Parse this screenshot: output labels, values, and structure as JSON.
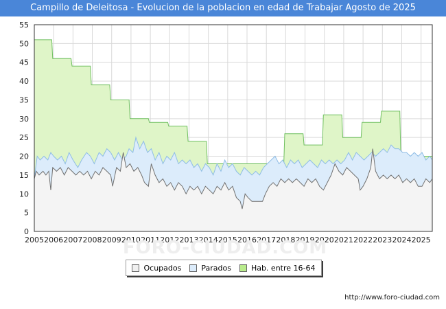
{
  "title": "Campillo de Deleitosa - Evolucion de la poblacion en edad de Trabajar Agosto de 2025",
  "source": "http://www.foro-ciudad.com",
  "watermark": "FORO-CIUDAD.COM",
  "colors": {
    "title_bg": "#4a86d8",
    "hab_fill": "#dff5c8",
    "hab_line": "#6fbf5f",
    "parados_fill": "#dcecfb",
    "parados_line": "#8fbde6",
    "ocupados_fill": "#f4f4f4",
    "ocupados_line": "#707070",
    "grid": "#d9d9d9"
  },
  "legend": [
    {
      "name": "Ocupados",
      "color": "#f0f0f0"
    },
    {
      "name": "Parados",
      "color": "#dcecfb"
    },
    {
      "name": "Hab. entre 16-64",
      "color": "#b9ec8c"
    }
  ],
  "chart_data": {
    "type": "area",
    "xlim": [
      2005,
      2025.58
    ],
    "ylim": [
      0,
      55
    ],
    "y_ticks": [
      0,
      5,
      10,
      15,
      20,
      25,
      30,
      35,
      40,
      45,
      50,
      55
    ],
    "x_ticks": [
      "2005",
      "2006",
      "2007",
      "2008",
      "2009",
      "2010",
      "2011",
      "2012",
      "2013",
      "2014",
      "2015",
      "2016",
      "2017",
      "2018",
      "2019",
      "2020",
      "2021",
      "2022",
      "2023",
      "2024",
      "2025"
    ],
    "grid": true,
    "legend_position": "bottom",
    "series": [
      {
        "name": "Hab. entre 16-64",
        "points": [
          [
            2005.0,
            51
          ],
          [
            2005.9,
            51
          ],
          [
            2005.95,
            46
          ],
          [
            2006.9,
            46
          ],
          [
            2006.95,
            44
          ],
          [
            2007.9,
            44
          ],
          [
            2007.95,
            39
          ],
          [
            2008.9,
            39
          ],
          [
            2008.95,
            35
          ],
          [
            2009.9,
            35
          ],
          [
            2009.95,
            30
          ],
          [
            2010.9,
            30
          ],
          [
            2010.95,
            29
          ],
          [
            2011.9,
            29
          ],
          [
            2011.95,
            28
          ],
          [
            2012.9,
            28
          ],
          [
            2012.95,
            24
          ],
          [
            2013.9,
            24
          ],
          [
            2013.95,
            18
          ],
          [
            2017.9,
            18
          ],
          [
            2017.95,
            26
          ],
          [
            2018.9,
            26
          ],
          [
            2018.95,
            23
          ],
          [
            2019.9,
            23
          ],
          [
            2019.95,
            31
          ],
          [
            2020.9,
            31
          ],
          [
            2020.95,
            25
          ],
          [
            2021.9,
            25
          ],
          [
            2021.95,
            29
          ],
          [
            2022.9,
            29
          ],
          [
            2022.95,
            32
          ],
          [
            2023.9,
            32
          ],
          [
            2023.95,
            20
          ],
          [
            2025.58,
            20
          ]
        ]
      },
      {
        "name": "Parados",
        "points": [
          [
            2005.0,
            14
          ],
          [
            2005.15,
            20
          ],
          [
            2005.3,
            19
          ],
          [
            2005.5,
            20
          ],
          [
            2005.7,
            19
          ],
          [
            2005.85,
            21
          ],
          [
            2006.0,
            20
          ],
          [
            2006.2,
            19
          ],
          [
            2006.4,
            20
          ],
          [
            2006.6,
            18
          ],
          [
            2006.8,
            21
          ],
          [
            2007.0,
            19
          ],
          [
            2007.25,
            17
          ],
          [
            2007.45,
            19
          ],
          [
            2007.7,
            21
          ],
          [
            2007.9,
            20
          ],
          [
            2008.1,
            18
          ],
          [
            2008.35,
            21
          ],
          [
            2008.55,
            20
          ],
          [
            2008.75,
            22
          ],
          [
            2008.95,
            21
          ],
          [
            2009.15,
            19
          ],
          [
            2009.35,
            21
          ],
          [
            2009.55,
            19
          ],
          [
            2009.75,
            20
          ],
          [
            2009.9,
            22
          ],
          [
            2010.1,
            21
          ],
          [
            2010.25,
            25
          ],
          [
            2010.45,
            22
          ],
          [
            2010.65,
            24
          ],
          [
            2010.85,
            21
          ],
          [
            2011.05,
            22
          ],
          [
            2011.25,
            19
          ],
          [
            2011.45,
            21
          ],
          [
            2011.65,
            18
          ],
          [
            2011.85,
            20
          ],
          [
            2012.05,
            19
          ],
          [
            2012.25,
            21
          ],
          [
            2012.45,
            18
          ],
          [
            2012.65,
            19
          ],
          [
            2012.85,
            18
          ],
          [
            2013.05,
            19
          ],
          [
            2013.25,
            17
          ],
          [
            2013.45,
            18
          ],
          [
            2013.65,
            16
          ],
          [
            2013.85,
            18
          ],
          [
            2014.05,
            17
          ],
          [
            2014.25,
            15
          ],
          [
            2014.45,
            18
          ],
          [
            2014.65,
            16
          ],
          [
            2014.85,
            19
          ],
          [
            2015.05,
            17
          ],
          [
            2015.25,
            18
          ],
          [
            2015.45,
            16
          ],
          [
            2015.65,
            15
          ],
          [
            2015.85,
            17
          ],
          [
            2016.05,
            16
          ],
          [
            2016.25,
            15
          ],
          [
            2016.45,
            16
          ],
          [
            2016.65,
            15
          ],
          [
            2016.85,
            17
          ],
          [
            2017.05,
            18
          ],
          [
            2017.25,
            19
          ],
          [
            2017.45,
            20
          ],
          [
            2017.65,
            18
          ],
          [
            2017.85,
            19
          ],
          [
            2018.05,
            17
          ],
          [
            2018.25,
            19
          ],
          [
            2018.45,
            18
          ],
          [
            2018.65,
            19
          ],
          [
            2018.85,
            17
          ],
          [
            2019.05,
            18
          ],
          [
            2019.25,
            19
          ],
          [
            2019.45,
            18
          ],
          [
            2019.65,
            17
          ],
          [
            2019.85,
            19
          ],
          [
            2020.05,
            18
          ],
          [
            2020.25,
            19
          ],
          [
            2020.45,
            18
          ],
          [
            2020.65,
            19
          ],
          [
            2020.85,
            18
          ],
          [
            2021.05,
            19
          ],
          [
            2021.25,
            21
          ],
          [
            2021.45,
            19
          ],
          [
            2021.65,
            21
          ],
          [
            2021.85,
            20
          ],
          [
            2022.05,
            19
          ],
          [
            2022.25,
            20
          ],
          [
            2022.45,
            21
          ],
          [
            2022.65,
            20
          ],
          [
            2022.85,
            21
          ],
          [
            2023.05,
            22
          ],
          [
            2023.25,
            21
          ],
          [
            2023.45,
            23
          ],
          [
            2023.65,
            22
          ],
          [
            2023.85,
            22
          ],
          [
            2024.05,
            21
          ],
          [
            2024.25,
            21
          ],
          [
            2024.45,
            20
          ],
          [
            2024.65,
            21
          ],
          [
            2024.85,
            20
          ],
          [
            2025.05,
            21
          ],
          [
            2025.25,
            19
          ],
          [
            2025.45,
            20
          ],
          [
            2025.58,
            19
          ]
        ]
      },
      {
        "name": "Ocupados",
        "points": [
          [
            2005.0,
            14
          ],
          [
            2005.1,
            16
          ],
          [
            2005.25,
            15
          ],
          [
            2005.45,
            16
          ],
          [
            2005.6,
            15
          ],
          [
            2005.75,
            16
          ],
          [
            2005.85,
            11
          ],
          [
            2005.95,
            17
          ],
          [
            2006.15,
            16
          ],
          [
            2006.35,
            17
          ],
          [
            2006.55,
            15
          ],
          [
            2006.75,
            17
          ],
          [
            2006.95,
            16
          ],
          [
            2007.15,
            15
          ],
          [
            2007.35,
            16
          ],
          [
            2007.55,
            15
          ],
          [
            2007.75,
            16
          ],
          [
            2007.95,
            14
          ],
          [
            2008.15,
            16
          ],
          [
            2008.35,
            15
          ],
          [
            2008.55,
            17
          ],
          [
            2008.75,
            16
          ],
          [
            2008.95,
            15
          ],
          [
            2009.05,
            12
          ],
          [
            2009.25,
            17
          ],
          [
            2009.45,
            16
          ],
          [
            2009.6,
            21
          ],
          [
            2009.75,
            17
          ],
          [
            2009.95,
            18
          ],
          [
            2010.15,
            16
          ],
          [
            2010.35,
            17
          ],
          [
            2010.55,
            15
          ],
          [
            2010.7,
            13
          ],
          [
            2010.9,
            12
          ],
          [
            2011.05,
            18
          ],
          [
            2011.25,
            15
          ],
          [
            2011.45,
            13
          ],
          [
            2011.65,
            14
          ],
          [
            2011.85,
            12
          ],
          [
            2012.05,
            13
          ],
          [
            2012.25,
            11
          ],
          [
            2012.45,
            13
          ],
          [
            2012.65,
            12
          ],
          [
            2012.85,
            10
          ],
          [
            2013.05,
            12
          ],
          [
            2013.25,
            11
          ],
          [
            2013.45,
            12
          ],
          [
            2013.65,
            10
          ],
          [
            2013.85,
            12
          ],
          [
            2014.05,
            11
          ],
          [
            2014.25,
            10
          ],
          [
            2014.45,
            12
          ],
          [
            2014.65,
            11
          ],
          [
            2014.85,
            13
          ],
          [
            2015.05,
            11
          ],
          [
            2015.25,
            12
          ],
          [
            2015.45,
            9
          ],
          [
            2015.65,
            8
          ],
          [
            2015.75,
            6
          ],
          [
            2015.9,
            10
          ],
          [
            2016.05,
            9
          ],
          [
            2016.25,
            8
          ],
          [
            2016.45,
            8
          ],
          [
            2016.65,
            8
          ],
          [
            2016.8,
            8
          ],
          [
            2016.95,
            10
          ],
          [
            2017.15,
            12
          ],
          [
            2017.35,
            13
          ],
          [
            2017.55,
            12
          ],
          [
            2017.75,
            14
          ],
          [
            2017.95,
            13
          ],
          [
            2018.15,
            14
          ],
          [
            2018.35,
            13
          ],
          [
            2018.55,
            14
          ],
          [
            2018.75,
            13
          ],
          [
            2018.95,
            12
          ],
          [
            2019.15,
            14
          ],
          [
            2019.35,
            13
          ],
          [
            2019.55,
            14
          ],
          [
            2019.75,
            12
          ],
          [
            2019.95,
            11
          ],
          [
            2020.15,
            13
          ],
          [
            2020.35,
            15
          ],
          [
            2020.55,
            18
          ],
          [
            2020.75,
            16
          ],
          [
            2020.95,
            15
          ],
          [
            2021.15,
            17
          ],
          [
            2021.35,
            16
          ],
          [
            2021.55,
            15
          ],
          [
            2021.75,
            14
          ],
          [
            2021.85,
            11
          ],
          [
            2022.0,
            12
          ],
          [
            2022.2,
            14
          ],
          [
            2022.4,
            17
          ],
          [
            2022.5,
            22
          ],
          [
            2022.65,
            16
          ],
          [
            2022.85,
            14
          ],
          [
            2023.05,
            15
          ],
          [
            2023.25,
            14
          ],
          [
            2023.45,
            15
          ],
          [
            2023.65,
            14
          ],
          [
            2023.85,
            15
          ],
          [
            2024.05,
            13
          ],
          [
            2024.25,
            14
          ],
          [
            2024.45,
            13
          ],
          [
            2024.65,
            14
          ],
          [
            2024.85,
            12
          ],
          [
            2025.05,
            12
          ],
          [
            2025.25,
            14
          ],
          [
            2025.45,
            13
          ],
          [
            2025.58,
            14
          ]
        ]
      }
    ]
  }
}
